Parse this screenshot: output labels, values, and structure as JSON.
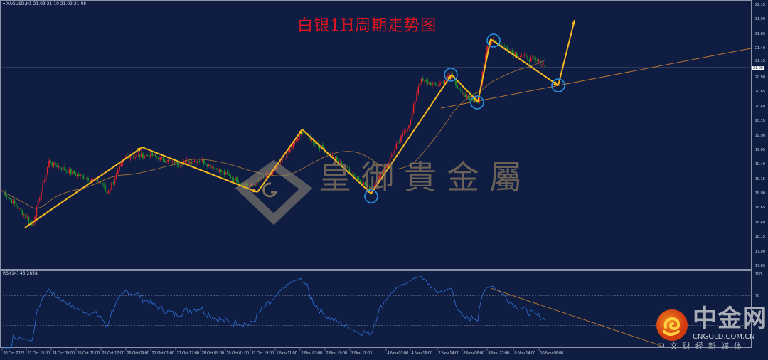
{
  "header": {
    "symbol_info": "XAGUSD,H1  21.03 21.10 21.02 21.08"
  },
  "annotation_title": "白银1H周期走势图",
  "watermark": "皇御貴金屬",
  "brand": {
    "name": "中金网",
    "url": "CNGOLD.COM.CN",
    "tagline": "中文财经新媒体"
  },
  "rsi_header": "RSI(14) 45.2858",
  "current_price": "21.08",
  "colors": {
    "background": "#0f1d42",
    "bull": "#e8202a",
    "bear": "#1f9a2a",
    "ma": "#a0703a",
    "arrows": "#f5b820",
    "circles": "#2a8fe0",
    "trendline": "#c07a30",
    "rsi": "#2f6fd6"
  },
  "chart_data": {
    "type": "candlestick",
    "symbol": "XAGUSD",
    "timeframe": "H1",
    "y_ticks": [
      "22.15",
      "21.90",
      "21.65",
      "21.40",
      "21.15",
      "20.90",
      "20.65",
      "20.40",
      "20.15",
      "19.90",
      "19.65",
      "19.40",
      "19.15",
      "18.90",
      "18.65",
      "18.40",
      "18.15",
      "17.90",
      "17.65"
    ],
    "ylim": [
      17.65,
      22.15
    ],
    "x_ticks": [
      "20 Oct 2022",
      "21 Oct 15:00",
      "24 Oct 09:00",
      "25 Oct 01:00",
      "25 Oct 17:00",
      "26 Oct 09:00",
      "27 Oct 01:00",
      "27 Oct 17:00",
      "28 Oct 09:00",
      "29 Oct 01:00",
      "31 Oct 19:00",
      "1 Nov 11:00",
      "2 Nov 03:00",
      "2 Nov 19:00",
      "3 Nov 11:00",
      "4 Nov 03:00",
      "4 Nov 19:00",
      "7 Nov 14:00",
      "8 Nov 06:00",
      "8 Nov 22:00",
      "9 Nov 14:00",
      "10 Nov 06:00"
    ],
    "approx_close_at_ticks": [
      18.95,
      18.5,
      19.42,
      19.23,
      19.1,
      19.54,
      19.56,
      19.42,
      19.48,
      19.23,
      19.02,
      19.29,
      19.91,
      19.64,
      19.29,
      19.39,
      20.15,
      20.76,
      20.58,
      21.44,
      21.32,
      21.16
    ],
    "last_close": 21.08,
    "rsi": {
      "period": 14,
      "value": 45.2858,
      "levels": [
        70,
        30
      ],
      "ylim": [
        0,
        100
      ],
      "ticks": [
        "100",
        "70"
      ]
    }
  }
}
